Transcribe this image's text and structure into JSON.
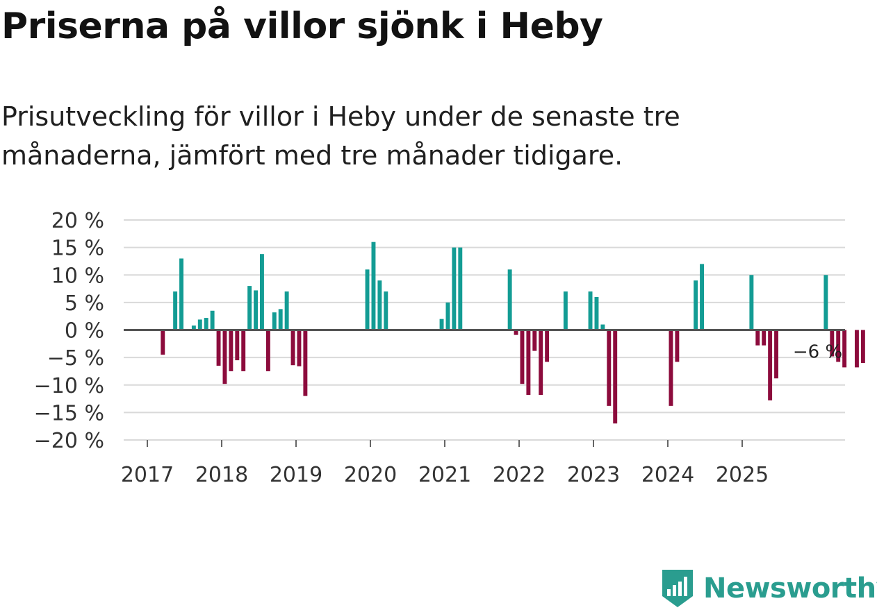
{
  "header": {
    "title": "Priserna på villor sjönk i Heby",
    "subtitle": "Prisutveckling för villor i Heby under de senaste tre månaderna, jämfört med tre månader tidigare."
  },
  "brand": {
    "name": "Newsworthy",
    "color": "#2a9d8f"
  },
  "colors": {
    "positive": "#139c94",
    "negative": "#8c0b3c",
    "grid": "#d9d9d9",
    "zero": "#555555"
  },
  "chart_data": {
    "type": "bar",
    "title": "Priserna på villor sjönk i Heby",
    "xlabel": "",
    "ylabel": "",
    "ylim": [
      -20,
      20
    ],
    "yticks": [
      20,
      15,
      10,
      5,
      0,
      -5,
      -10,
      -15,
      -20
    ],
    "ytick_labels": [
      "20 %",
      "15 %",
      "10 %",
      "5 %",
      "0 %",
      "−5 %",
      "−10 %",
      "−15 %",
      "−20 %"
    ],
    "xtick_labels": [
      "2017",
      "2018",
      "2019",
      "2020",
      "2021",
      "2022",
      "2023",
      "2024",
      "2025"
    ],
    "x_start_year": 2017,
    "x_end_year": 2026,
    "grid": true,
    "annotation": {
      "label": "−6 %",
      "index": 107
    },
    "values": [
      null,
      null,
      -4.5,
      null,
      7,
      13,
      null,
      0.8,
      1.9,
      2.2,
      3.5,
      -6.5,
      -9.8,
      -7.5,
      -5.5,
      -7.5,
      8,
      7.2,
      13.8,
      -7.5,
      3.2,
      3.8,
      7,
      -6.4,
      -6.6,
      -12,
      null,
      null,
      null,
      null,
      null,
      null,
      null,
      null,
      null,
      11,
      16,
      9,
      7,
      null,
      null,
      null,
      null,
      null,
      null,
      null,
      null,
      2,
      5,
      15,
      15,
      null,
      null,
      null,
      null,
      null,
      null,
      null,
      11,
      -0.9,
      -9.8,
      -11.8,
      -3.8,
      -11.8,
      -5.8,
      null,
      null,
      7,
      null,
      null,
      null,
      7,
      6,
      1,
      -13.8,
      -17,
      null,
      null,
      null,
      null,
      null,
      null,
      null,
      null,
      -13.8,
      -5.8,
      null,
      null,
      9,
      12,
      null,
      null,
      null,
      null,
      null,
      null,
      null,
      10,
      -2.8,
      -2.8,
      -12.8,
      -8.8,
      null,
      null,
      null,
      null,
      null,
      null,
      null,
      10,
      -4.8,
      -5.8,
      -6.8,
      null,
      -6.8,
      -6
    ]
  }
}
